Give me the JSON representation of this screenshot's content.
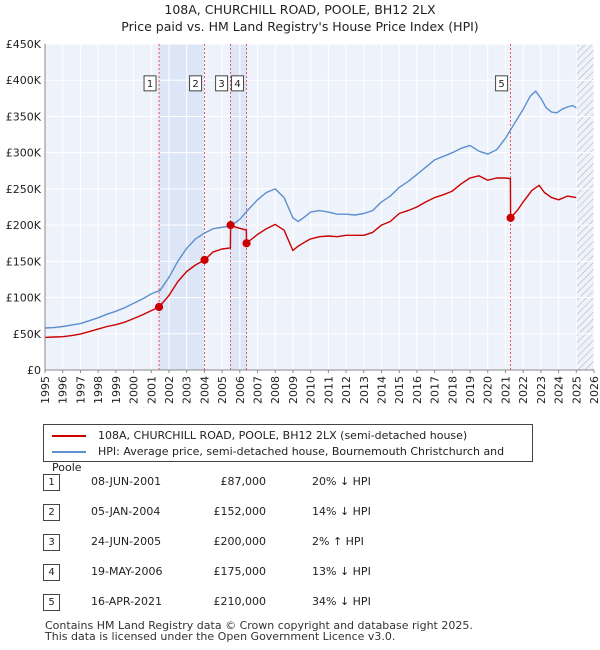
{
  "header": {
    "title": "108A, CHURCHILL ROAD, POOLE, BH12 2LX",
    "subtitle": "Price paid vs. HM Land Registry's House Price Index (HPI)"
  },
  "chart_data": {
    "type": "line",
    "title": "108A, CHURCHILL ROAD, POOLE, BH12 2LX",
    "subtitle": "Price paid vs. HM Land Registry's House Price Index (HPI)",
    "xlim": [
      1995,
      2026
    ],
    "ylim": [
      0,
      450000
    ],
    "x_ticks": [
      "1995",
      "1996",
      "1997",
      "1998",
      "1999",
      "2000",
      "2001",
      "2002",
      "2003",
      "2004",
      "2005",
      "2006",
      "2007",
      "2008",
      "2009",
      "2010",
      "2011",
      "2012",
      "2013",
      "2014",
      "2015",
      "2016",
      "2017",
      "2018",
      "2019",
      "2020",
      "2021",
      "2022",
      "2023",
      "2024",
      "2025",
      "2026"
    ],
    "y_ticks": [
      {
        "value": 0,
        "label": "£0"
      },
      {
        "value": 50000,
        "label": "£50K"
      },
      {
        "value": 100000,
        "label": "£100K"
      },
      {
        "value": 150000,
        "label": "£150K"
      },
      {
        "value": 200000,
        "label": "£200K"
      },
      {
        "value": 250000,
        "label": "£250K"
      },
      {
        "value": 300000,
        "label": "£300K"
      },
      {
        "value": 350000,
        "label": "£350K"
      },
      {
        "value": 400000,
        "label": "£400K"
      },
      {
        "value": 450000,
        "label": "£450K"
      }
    ],
    "grid": true,
    "hatch_from": 2025.0,
    "shaded_regions": [
      [
        2001.44,
        2004.01
      ],
      [
        2005.48,
        2006.38
      ]
    ],
    "series": [
      {
        "name": "108A, CHURCHILL ROAD, POOLE, BH12 2LX (semi-detached house)",
        "color": "#cc0000",
        "x": [
          1995.0,
          1995.5,
          1996.0,
          1996.5,
          1997.0,
          1997.5,
          1998.0,
          1998.5,
          1999.0,
          1999.5,
          2000.0,
          2000.5,
          2001.0,
          2001.44,
          2002.0,
          2002.5,
          2003.0,
          2003.5,
          2004.01,
          2004.5,
          2005.0,
          2005.47,
          2005.48,
          2005.8,
          2006.37,
          2006.38,
          2007.0,
          2007.5,
          2008.0,
          2008.5,
          2009.0,
          2009.3,
          2009.7,
          2010.0,
          2010.5,
          2011.0,
          2011.5,
          2012.0,
          2012.5,
          2013.0,
          2013.5,
          2014.0,
          2014.5,
          2015.0,
          2015.5,
          2016.0,
          2016.5,
          2017.0,
          2017.5,
          2018.0,
          2018.5,
          2019.0,
          2019.5,
          2020.0,
          2020.5,
          2021.0,
          2021.28,
          2021.29,
          2021.7,
          2022.0,
          2022.5,
          2022.9,
          2023.2,
          2023.6,
          2024.0,
          2024.5,
          2025.0
        ],
        "values": [
          45000,
          45500,
          46000,
          47500,
          49500,
          53000,
          56500,
          60000,
          62500,
          66000,
          71000,
          76000,
          82000,
          87000,
          103000,
          122000,
          136000,
          145000,
          152000,
          163000,
          167000,
          168500,
          200000,
          197000,
          193000,
          175000,
          187000,
          195000,
          201000,
          193000,
          165000,
          171000,
          177000,
          181000,
          184000,
          185000,
          184000,
          186000,
          186000,
          186000,
          190000,
          200000,
          205000,
          216000,
          220000,
          225000,
          232000,
          238000,
          242000,
          247000,
          257000,
          265000,
          268000,
          262000,
          265000,
          265000,
          264000,
          210000,
          221000,
          232000,
          248000,
          255000,
          245000,
          238000,
          235000,
          240000,
          238000
        ]
      },
      {
        "name": "HPI: Average price, semi-detached house, Bournemouth Christchurch and Poole",
        "color": "#5b8fce",
        "x": [
          1995.0,
          1995.5,
          1996.0,
          1996.5,
          1997.0,
          1997.5,
          1998.0,
          1998.5,
          1999.0,
          1999.5,
          2000.0,
          2000.5,
          2001.0,
          2001.5,
          2002.0,
          2002.5,
          2003.0,
          2003.5,
          2004.0,
          2004.5,
          2005.0,
          2005.5,
          2006.0,
          2006.5,
          2007.0,
          2007.5,
          2008.0,
          2008.5,
          2009.0,
          2009.3,
          2009.7,
          2010.0,
          2010.5,
          2011.0,
          2011.5,
          2012.0,
          2012.5,
          2013.0,
          2013.5,
          2014.0,
          2014.5,
          2015.0,
          2015.5,
          2016.0,
          2016.5,
          2017.0,
          2017.5,
          2018.0,
          2018.5,
          2019.0,
          2019.5,
          2020.0,
          2020.5,
          2021.0,
          2021.5,
          2022.0,
          2022.4,
          2022.7,
          2023.0,
          2023.3,
          2023.6,
          2023.9,
          2024.2,
          2024.5,
          2024.8,
          2025.0
        ],
        "values": [
          58000,
          58500,
          60000,
          62000,
          64000,
          68000,
          72000,
          77000,
          81000,
          86000,
          92000,
          98000,
          105000,
          110000,
          128000,
          150000,
          168000,
          181000,
          189000,
          195000,
          197000,
          199000,
          208000,
          222000,
          235000,
          245000,
          250000,
          238000,
          210000,
          205000,
          212000,
          218000,
          220000,
          218000,
          215000,
          215000,
          214000,
          216000,
          220000,
          232000,
          240000,
          252000,
          260000,
          270000,
          280000,
          290000,
          295000,
          300000,
          306000,
          310000,
          302000,
          298000,
          304000,
          320000,
          340000,
          360000,
          378000,
          385000,
          375000,
          362000,
          356000,
          355000,
          360000,
          363000,
          365000,
          362000
        ]
      }
    ],
    "sale_markers": [
      {
        "label": "1",
        "x": 2001.44,
        "y": 87000
      },
      {
        "label": "2",
        "x": 2004.01,
        "y": 152000
      },
      {
        "label": "3",
        "x": 2005.48,
        "y": 200000
      },
      {
        "label": "4",
        "x": 2006.38,
        "y": 175000
      },
      {
        "label": "5",
        "x": 2021.29,
        "y": 210000
      }
    ],
    "marker_box_value": 395000
  },
  "legend": {
    "items": [
      {
        "label": "108A, CHURCHILL ROAD, POOLE, BH12 2LX (semi-detached house)",
        "color": "#cc0000"
      },
      {
        "label": "HPI: Average price, semi-detached house, Bournemouth Christchurch and Poole",
        "color": "#5b8fce"
      }
    ]
  },
  "sales": [
    {
      "num": "1",
      "date": "08-JUN-2001",
      "price": "£87,000",
      "hpi": "20% ↓ HPI"
    },
    {
      "num": "2",
      "date": "05-JAN-2004",
      "price": "£152,000",
      "hpi": "14% ↓ HPI"
    },
    {
      "num": "3",
      "date": "24-JUN-2005",
      "price": "£200,000",
      "hpi": "2% ↑ HPI"
    },
    {
      "num": "4",
      "date": "19-MAY-2006",
      "price": "£175,000",
      "hpi": "13% ↓ HPI"
    },
    {
      "num": "5",
      "date": "16-APR-2021",
      "price": "£210,000",
      "hpi": "34% ↓ HPI"
    }
  ],
  "footer": {
    "line1": "Contains HM Land Registry data © Crown copyright and database right 2025.",
    "line2": "This data is licensed under the Open Government Licence v3.0."
  }
}
